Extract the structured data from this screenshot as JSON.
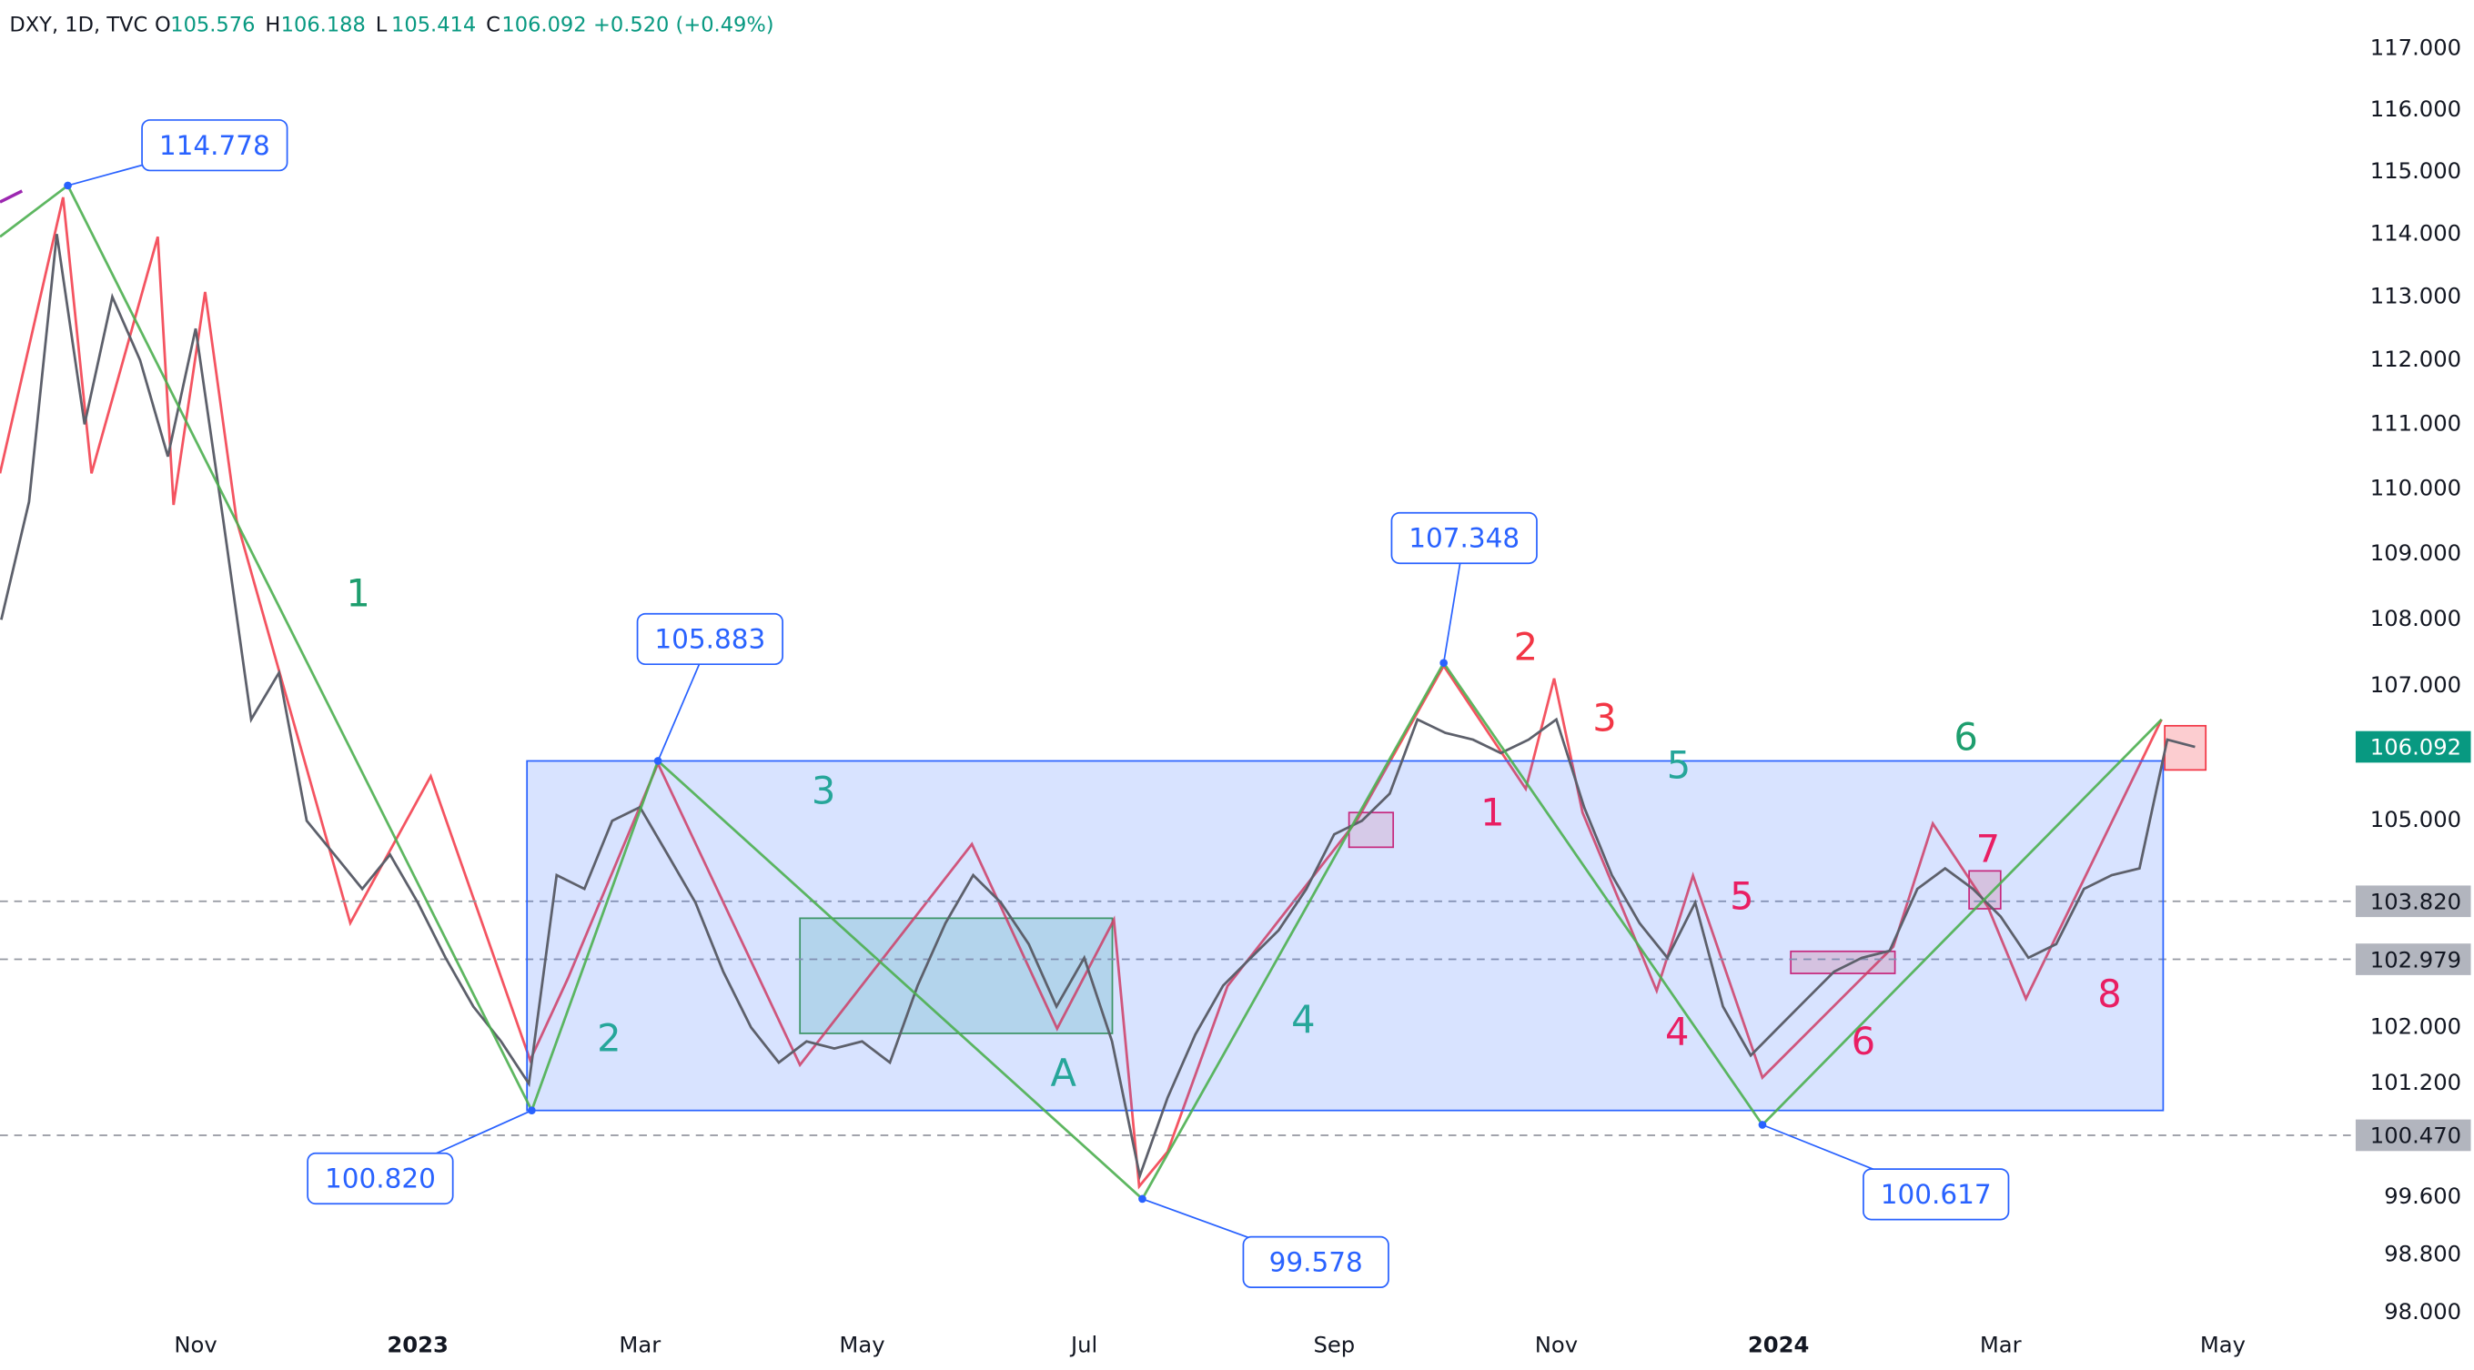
{
  "chart_data": {
    "type": "line",
    "header": {
      "symbol": "DXY, 1D, TVC",
      "ohlc": [
        {
          "key": "O",
          "value": 105.576
        },
        {
          "key": "H",
          "value": 106.188
        },
        {
          "key": "L",
          "value": 105.414
        },
        {
          "key": "C",
          "value": 106.092
        }
      ],
      "change": "+0.520 (+0.49%)"
    },
    "categories": [
      null,
      null,
      null,
      null,
      null,
      null,
      null,
      "Nov",
      null,
      null,
      null,
      null,
      null,
      null,
      null,
      "2023",
      null,
      null,
      null,
      null,
      null,
      null,
      null,
      "Mar",
      null,
      null,
      null,
      null,
      null,
      null,
      null,
      "May",
      null,
      null,
      null,
      null,
      null,
      null,
      null,
      "Jul",
      null,
      null,
      null,
      null,
      null,
      null,
      null,
      null,
      "Sep",
      null,
      null,
      null,
      null,
      null,
      null,
      null,
      "Nov",
      null,
      null,
      null,
      null,
      null,
      null,
      null,
      "2024",
      null,
      null,
      null,
      null,
      null,
      null,
      null,
      "Mar",
      null,
      null,
      null,
      null,
      null,
      null,
      null,
      "May"
    ],
    "values": [
      108.0,
      109.8,
      114.0,
      111.0,
      113.0,
      112.0,
      110.5,
      112.5,
      109.5,
      106.5,
      107.2,
      105.0,
      104.5,
      104.0,
      104.5,
      103.8,
      103.0,
      102.3,
      101.8,
      101.2,
      104.2,
      104.0,
      105.0,
      105.2,
      104.5,
      103.8,
      102.8,
      102.0,
      101.5,
      101.8,
      101.7,
      101.8,
      101.5,
      102.6,
      103.5,
      104.2,
      103.8,
      103.2,
      102.3,
      103.0,
      101.8,
      99.9,
      101.0,
      101.9,
      102.6,
      103.0,
      103.4,
      104.0,
      104.8,
      105.0,
      105.4,
      106.5,
      106.3,
      106.2,
      106.0,
      106.2,
      106.5,
      105.2,
      104.2,
      103.5,
      103.0,
      103.8,
      102.3,
      101.6,
      102.0,
      102.4,
      102.8,
      103.0,
      103.1,
      104.0,
      104.3,
      104.0,
      103.6,
      103.0,
      103.2,
      104.0,
      104.2,
      104.3,
      106.2,
      106.092,
      null
    ],
    "color": "#5d606b",
    "log_scale": true,
    "ylim": [
      97.83,
      117.8
    ],
    "yticks": [
      {
        "value": 117,
        "label": "117.000"
      },
      {
        "value": 116,
        "label": "116.000"
      },
      {
        "value": 115,
        "label": "115.000"
      },
      {
        "value": 114,
        "label": "114.000"
      },
      {
        "value": 113,
        "label": "113.000"
      },
      {
        "value": 112,
        "label": "112.000"
      },
      {
        "value": 111,
        "label": "111.000"
      },
      {
        "value": 110,
        "label": "110.000"
      },
      {
        "value": 109,
        "label": "109.000"
      },
      {
        "value": 108,
        "label": "108.000"
      },
      {
        "value": 107,
        "label": "107.000"
      },
      {
        "value": 105,
        "label": "105.000"
      },
      {
        "value": 102,
        "label": "102.000"
      },
      {
        "value": 101.2,
        "label": "101.200"
      },
      {
        "value": 99.6,
        "label": "99.600"
      },
      {
        "value": 98.8,
        "label": "98.800"
      },
      {
        "value": 98,
        "label": "98.000"
      }
    ],
    "levels": [
      {
        "value": 103.82,
        "label": "103.820"
      },
      {
        "value": 102.979,
        "label": "102.979"
      },
      {
        "value": 100.47,
        "label": "100.470"
      }
    ],
    "pivots": [
      {
        "value": 114.778,
        "label": "114.778"
      },
      {
        "value": 105.883,
        "label": "105.883"
      },
      {
        "value": 107.348,
        "label": "107.348"
      },
      {
        "value": 100.82,
        "label": "100.820"
      },
      {
        "value": 99.578,
        "label": "99.578"
      },
      {
        "value": 100.617,
        "label": "100.617"
      }
    ],
    "wave_labels": [
      "1",
      "2",
      "3",
      "A",
      "4",
      "5",
      "6",
      "2",
      "3",
      "1",
      "5",
      "4",
      "6",
      "7",
      "8"
    ]
  }
}
